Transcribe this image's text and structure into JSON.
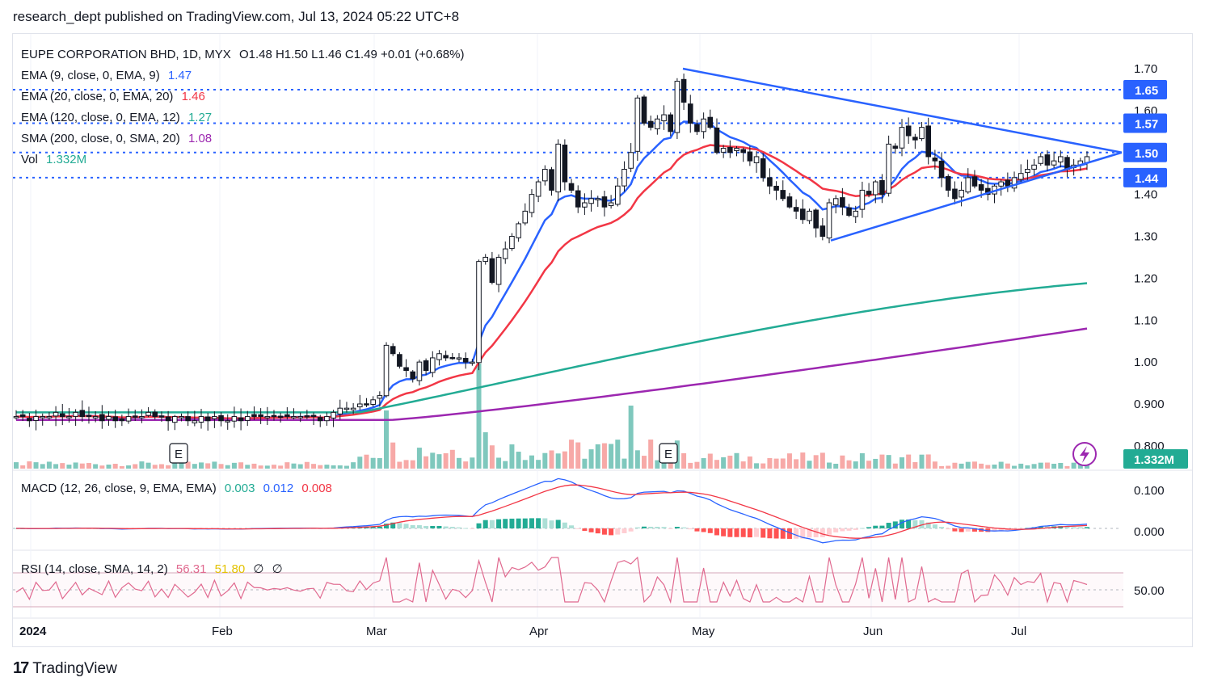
{
  "header": {
    "text": "research_dept published on TradingView.com, Jul 13, 2024 05:22 UTC+8"
  },
  "footer": {
    "logo_icon": "tradingview-logo-icon",
    "brand": "TradingView"
  },
  "legend": {
    "symbol": "EUPE CORPORATION BHD, 1D, MYX",
    "ohlc": "O1.48  H1.50  L1.46  C1.49  +0.01 (+0.68%)",
    "ema9": {
      "label": "EMA (9, close, 0, EMA, 9)",
      "value": "1.47",
      "color": "#2962ff"
    },
    "ema20": {
      "label": "EMA (20, close, 0, EMA, 20)",
      "value": "1.46",
      "color": "#f23645"
    },
    "ema120": {
      "label": "EMA (120, close, 0, EMA, 12)",
      "value": "1.27",
      "color": "#22ab94"
    },
    "sma200": {
      "label": "SMA (200, close, 0, SMA, 20)",
      "value": "1.08",
      "color": "#9c27b0"
    },
    "vol": {
      "label": "Vol",
      "value": "1.332M",
      "color": "#22ab94"
    }
  },
  "macd_legend": {
    "label": "MACD (12, 26, close, 9, EMA, EMA)",
    "hist": "0.003",
    "macd": "0.012",
    "signal": "0.008"
  },
  "rsi_legend": {
    "label": "RSI (14, close, SMA, 14, 2)",
    "rsi": "56.31",
    "ma": "51.80",
    "extra1": "∅",
    "extra2": "∅"
  },
  "earnings_marker": "E",
  "icons": {
    "flash": "flash-icon"
  },
  "chart_data": {
    "type": "candlestick",
    "price_axis": {
      "ticks": [
        "1.70",
        "1.60",
        "1.40",
        "1.30",
        "1.20",
        "1.10",
        "1.00",
        "0.900",
        "0.800"
      ],
      "range": [
        0.78,
        1.72
      ]
    },
    "price_badges": [
      "1.65",
      "1.57",
      "1.50",
      "1.44"
    ],
    "volume_badge": "1.332M",
    "macd_axis": {
      "ticks": [
        "0.100",
        "0.000"
      ]
    },
    "rsi_axis": {
      "ticks": [
        "50.00"
      ]
    },
    "x_axis": {
      "labels": [
        "2024",
        "Feb",
        "Mar",
        "Apr",
        "May",
        "Jun",
        "Jul"
      ]
    },
    "horizontal_levels": [
      1.65,
      1.57,
      1.5,
      1.44
    ],
    "trendlines": [
      {
        "name": "upper",
        "from": [
          0.0,
          1.7
        ],
        "to": [
          1.0,
          1.48
        ]
      },
      {
        "name": "lower",
        "from": [
          0.0,
          1.29
        ],
        "to": [
          1.0,
          1.48
        ]
      }
    ],
    "candles_close": [
      0.87,
      0.87,
      0.86,
      0.87,
      0.87,
      0.87,
      0.88,
      0.87,
      0.87,
      0.88,
      0.87,
      0.87,
      0.87,
      0.86,
      0.87,
      0.86,
      0.86,
      0.87,
      0.87,
      0.87,
      0.88,
      0.87,
      0.87,
      0.86,
      0.87,
      0.87,
      0.86,
      0.86,
      0.87,
      0.86,
      0.87,
      0.86,
      0.86,
      0.87,
      0.86,
      0.87,
      0.87,
      0.87,
      0.87,
      0.87,
      0.87,
      0.87,
      0.87,
      0.87,
      0.87,
      0.87,
      0.86,
      0.87,
      0.88,
      0.89,
      0.89,
      0.89,
      0.9,
      0.9,
      0.91,
      0.92,
      1.04,
      1.02,
      0.99,
      0.98,
      0.96,
      1.0,
      0.98,
      1.01,
      1.02,
      1.01,
      1.01,
      1.01,
      1.0,
      1.0,
      1.24,
      1.25,
      1.19,
      1.25,
      1.27,
      1.3,
      1.33,
      1.36,
      1.4,
      1.43,
      1.46,
      1.41,
      1.52,
      1.43,
      1.41,
      1.37,
      1.38,
      1.39,
      1.39,
      1.37,
      1.38,
      1.42,
      1.46,
      1.5,
      1.63,
      1.57,
      1.56,
      1.58,
      1.59,
      1.55,
      1.67,
      1.62,
      1.57,
      1.55,
      1.58,
      1.56,
      1.5,
      1.51,
      1.5,
      1.51,
      1.5,
      1.48,
      1.49,
      1.44,
      1.42,
      1.41,
      1.39,
      1.37,
      1.36,
      1.34,
      1.36,
      1.32,
      1.3,
      1.38,
      1.39,
      1.37,
      1.35,
      1.36,
      1.41,
      1.4,
      1.43,
      1.4,
      1.52,
      1.51,
      1.56,
      1.54,
      1.53,
      1.56,
      1.49,
      1.48,
      1.44,
      1.41,
      1.39,
      1.41,
      1.44,
      1.42,
      1.41,
      1.4,
      1.42,
      1.43,
      1.42,
      1.44,
      1.45,
      1.46,
      1.47,
      1.49,
      1.47,
      1.48,
      1.49,
      1.46,
      1.47,
      1.48,
      1.49
    ],
    "ema9_color": "#2962ff",
    "ema20_color": "#f23645",
    "ema120_color": "#22ab94",
    "sma200_color": "#9c27b0",
    "up_color": "#ffffff",
    "down_color": "#131722",
    "vol_up": "#7fc8bd",
    "vol_down": "#f7a9a7"
  }
}
